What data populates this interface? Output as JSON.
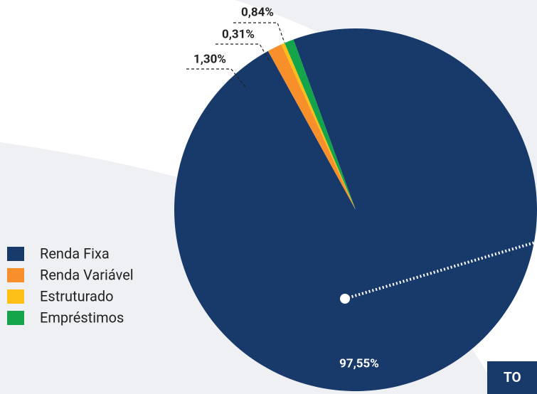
{
  "chart_data": {
    "type": "pie",
    "categories": [
      "Renda Fixa",
      "Renda Variável",
      "Estruturado",
      "Empréstimos"
    ],
    "values": [
      97.55,
      1.3,
      0.31,
      0.84
    ],
    "value_labels": [
      "97,55%",
      "1,30%",
      "0,31%",
      "0,84%"
    ],
    "colors": [
      "#173a6b",
      "#f7902a",
      "#fbbf16",
      "#14a54b"
    ],
    "total_label": "TO"
  }
}
